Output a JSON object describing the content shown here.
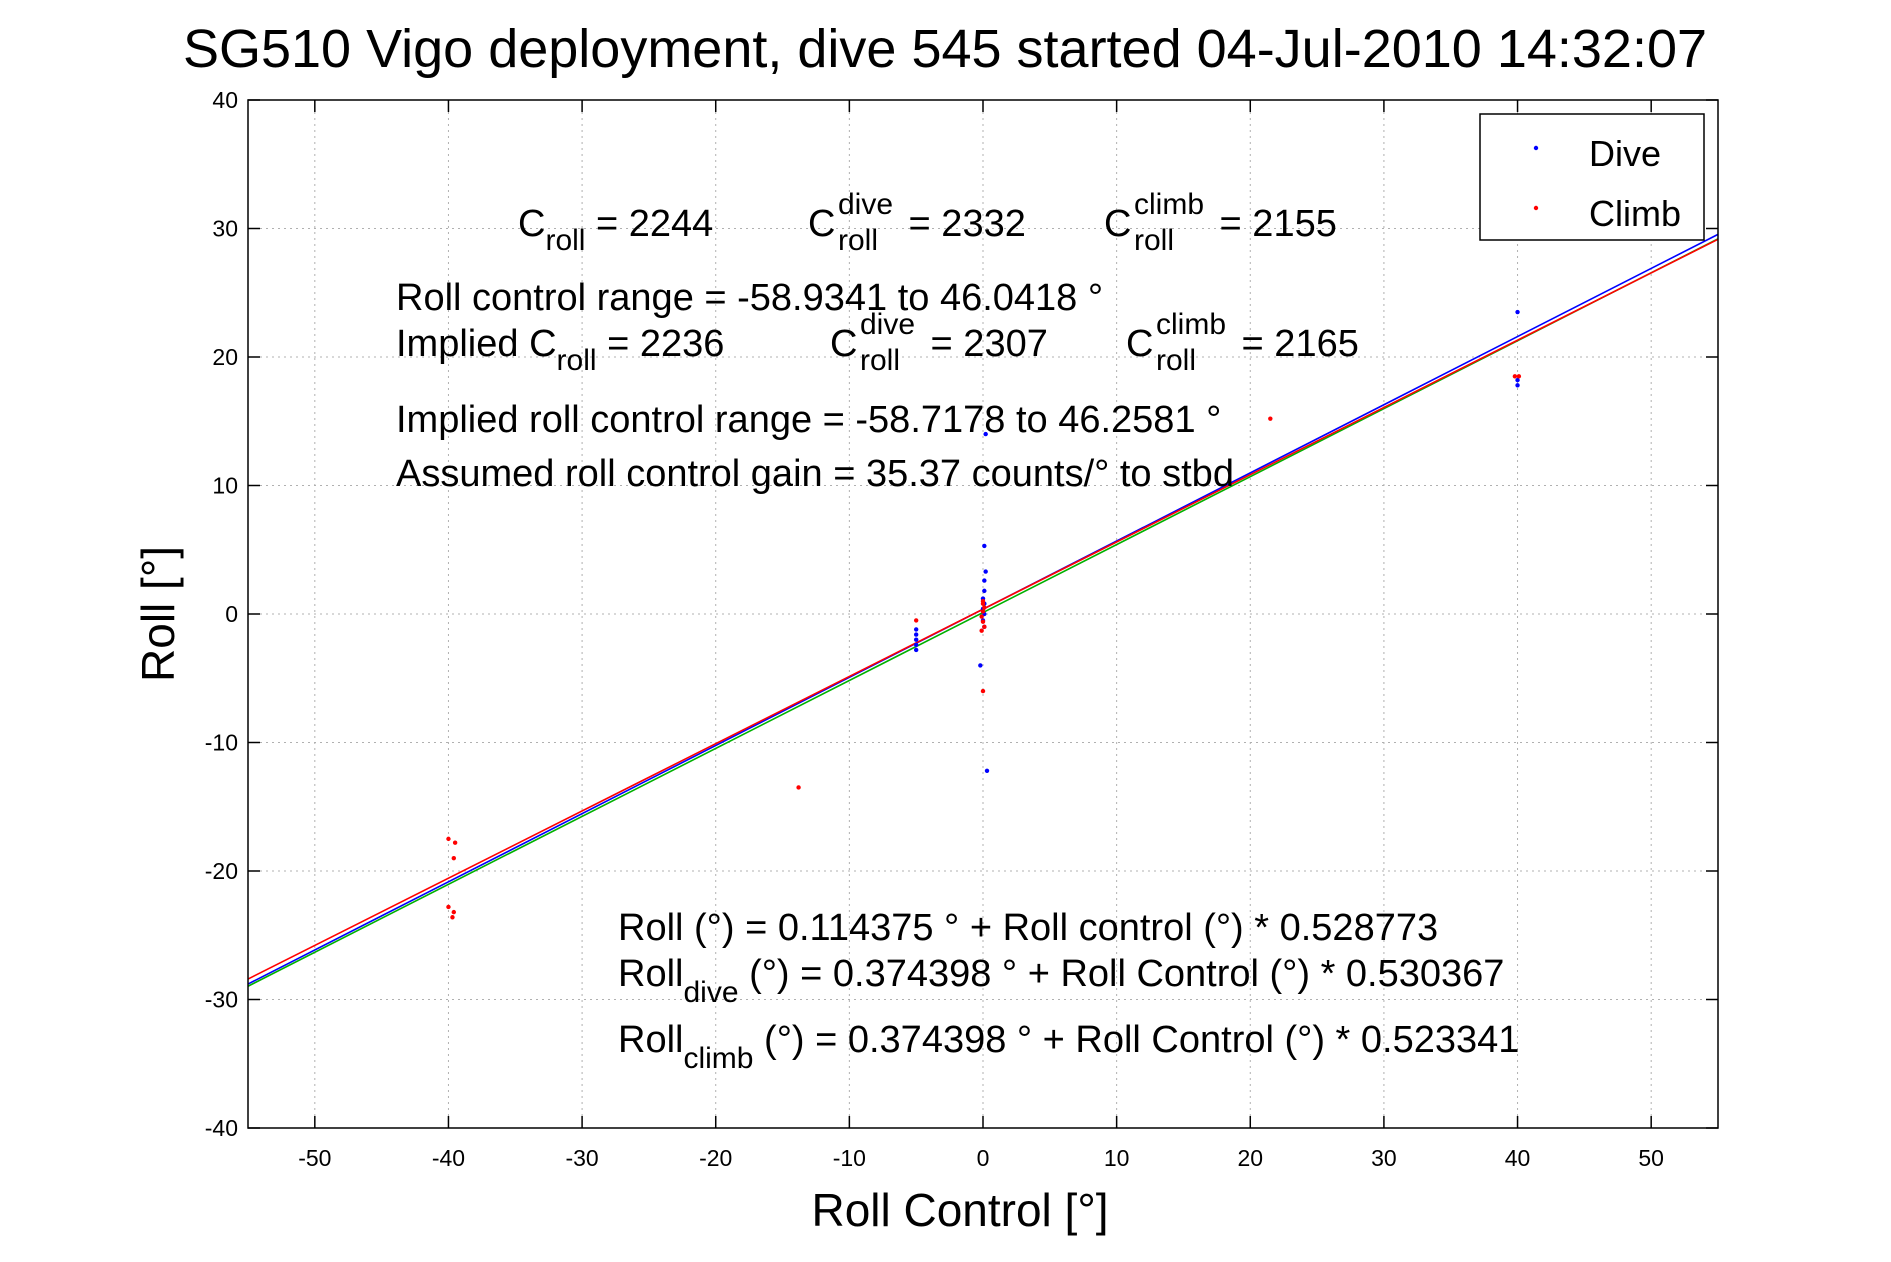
{
  "chart_data": {
    "type": "scatter",
    "title": "SG510 Vigo deployment, dive 545 started 04-Jul-2010 14:32:07",
    "xlabel": "Roll Control [°]",
    "ylabel": "Roll [°]",
    "xlim": [
      -55,
      55
    ],
    "ylim": [
      -40,
      40
    ],
    "xticks": [
      -50,
      -40,
      -30,
      -20,
      -10,
      0,
      10,
      20,
      30,
      40,
      50
    ],
    "yticks": [
      -40,
      -30,
      -20,
      -10,
      0,
      10,
      20,
      30,
      40
    ],
    "grid": true,
    "legend_position": "top-right",
    "colors": {
      "dive": "#0000ff",
      "climb": "#ff0000",
      "fit_all": "#00b000",
      "fit_dive": "#0000ff",
      "fit_climb": "#ff0000"
    },
    "series": [
      {
        "name": "Dive",
        "points": [
          [
            40.0,
            23.5
          ],
          [
            40.0,
            18.2
          ],
          [
            40.0,
            17.8
          ],
          [
            -5.0,
            -1.2
          ],
          [
            -5.0,
            -1.6
          ],
          [
            -5.0,
            -2.0
          ],
          [
            -5.0,
            -2.4
          ],
          [
            -5.0,
            -2.8
          ],
          [
            0.1,
            5.3
          ],
          [
            0.2,
            3.3
          ],
          [
            0.1,
            2.6
          ],
          [
            0.1,
            1.8
          ],
          [
            0.0,
            1.2
          ],
          [
            0.1,
            0.8
          ],
          [
            0.0,
            0.4
          ],
          [
            0.1,
            0.0
          ],
          [
            0.0,
            -0.5
          ],
          [
            0.1,
            -1.0
          ],
          [
            -0.2,
            -4.0
          ],
          [
            0.3,
            -12.2
          ],
          [
            0.2,
            14.0
          ]
        ]
      },
      {
        "name": "Climb",
        "points": [
          [
            40.1,
            18.5
          ],
          [
            39.8,
            18.5
          ],
          [
            21.5,
            15.2
          ],
          [
            -5.0,
            -0.5
          ],
          [
            -13.8,
            -13.5
          ],
          [
            -40.0,
            -17.5
          ],
          [
            -39.5,
            -17.8
          ],
          [
            -39.6,
            -19.0
          ],
          [
            -40.0,
            -22.8
          ],
          [
            -39.6,
            -23.2
          ],
          [
            -39.7,
            -23.6
          ],
          [
            0.0,
            1.0
          ],
          [
            0.1,
            0.5
          ],
          [
            0.0,
            0.2
          ],
          [
            -0.1,
            -0.2
          ],
          [
            0.0,
            -0.6
          ],
          [
            0.1,
            -1.0
          ],
          [
            -0.1,
            -1.3
          ],
          [
            0.0,
            0.8
          ],
          [
            0.0,
            -6.0
          ]
        ]
      }
    ],
    "fits": [
      {
        "name": "all",
        "intercept": 0.114375,
        "slope": 0.528773
      },
      {
        "name": "dive",
        "intercept": 0.374398,
        "slope": 0.530367
      },
      {
        "name": "climb",
        "intercept": 0.374398,
        "slope": 0.523341
      }
    ],
    "annotations": {
      "c_roll": {
        "base": "C",
        "sub": "roll",
        "rest": " = 2244"
      },
      "c_roll_dive": {
        "base": "C",
        "sup": "dive",
        "sub": "roll",
        "rest": " = 2332"
      },
      "c_roll_climb": {
        "base": "C",
        "sup": "climb",
        "sub": "roll",
        "rest": " = 2155"
      },
      "roll_control_range": "Roll control range = -58.9341 to 46.0418 °",
      "implied_prefix": "Implied ",
      "implied_c_roll": {
        "base": "C",
        "sub": "roll",
        "rest": " = 2236"
      },
      "implied_c_roll_dive": {
        "base": "C",
        "sup": "dive",
        "sub": "roll",
        "rest": " = 2307"
      },
      "implied_c_roll_climb": {
        "base": "C",
        "sup": "climb",
        "sub": "roll",
        "rest": " = 2165"
      },
      "implied_range": "Implied roll control range = -58.7178 to 46.2581 °",
      "assumed_gain": "Assumed roll control gain = 35.37 counts/° to stbd",
      "fit_all_eq": "Roll (°) = 0.114375 ° + Roll control (°) * 0.528773",
      "fit_dive_eq": {
        "base": "Roll",
        "sub": "dive",
        "rest": " (°) = 0.374398 ° + Roll Control (°) * 0.530367"
      },
      "fit_climb_eq": {
        "base": "Roll",
        "sub": "climb",
        "rest": " (°) = 0.374398 ° + Roll Control (°) * 0.523341"
      }
    }
  }
}
